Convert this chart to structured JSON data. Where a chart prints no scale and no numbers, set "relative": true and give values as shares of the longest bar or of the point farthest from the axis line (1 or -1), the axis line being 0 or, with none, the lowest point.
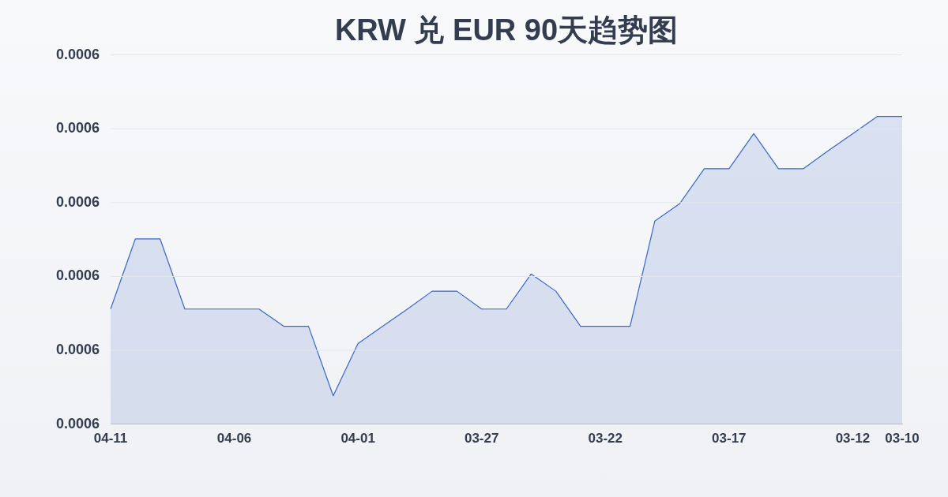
{
  "chart_data": {
    "type": "area",
    "title": "KRW 兑 EUR 90天趋势图",
    "categories": [
      "04-11",
      null,
      null,
      null,
      null,
      "04-06",
      null,
      null,
      null,
      null,
      "04-01",
      null,
      null,
      null,
      null,
      "03-27",
      null,
      null,
      null,
      null,
      "03-22",
      null,
      null,
      null,
      null,
      "03-17",
      null,
      null,
      null,
      null,
      "03-12",
      null,
      "03-10"
    ],
    "series": [
      {
        "color": "#3a66c4",
        "values": [
          0.374,
          0.602,
          0.602,
          0.374,
          0.374,
          0.374,
          0.374,
          0.318,
          0.318,
          0.092,
          0.262,
          0.318,
          0.374,
          0.432,
          0.432,
          0.374,
          0.374,
          0.488,
          0.432,
          0.318,
          0.318,
          0.318,
          0.66,
          0.716,
          0.83,
          0.83,
          0.944,
          0.83,
          0.83,
          0.888,
          0.944,
          1,
          1
        ]
      }
    ],
    "relative": true,
    "annotations": [
      "0.0006",
      "0.0006",
      "0.0006",
      "0.0006",
      "0.0006",
      "0.0006"
    ],
    "grid": "y",
    "legend": false,
    "marker": "none",
    "line_style": "solid"
  }
}
